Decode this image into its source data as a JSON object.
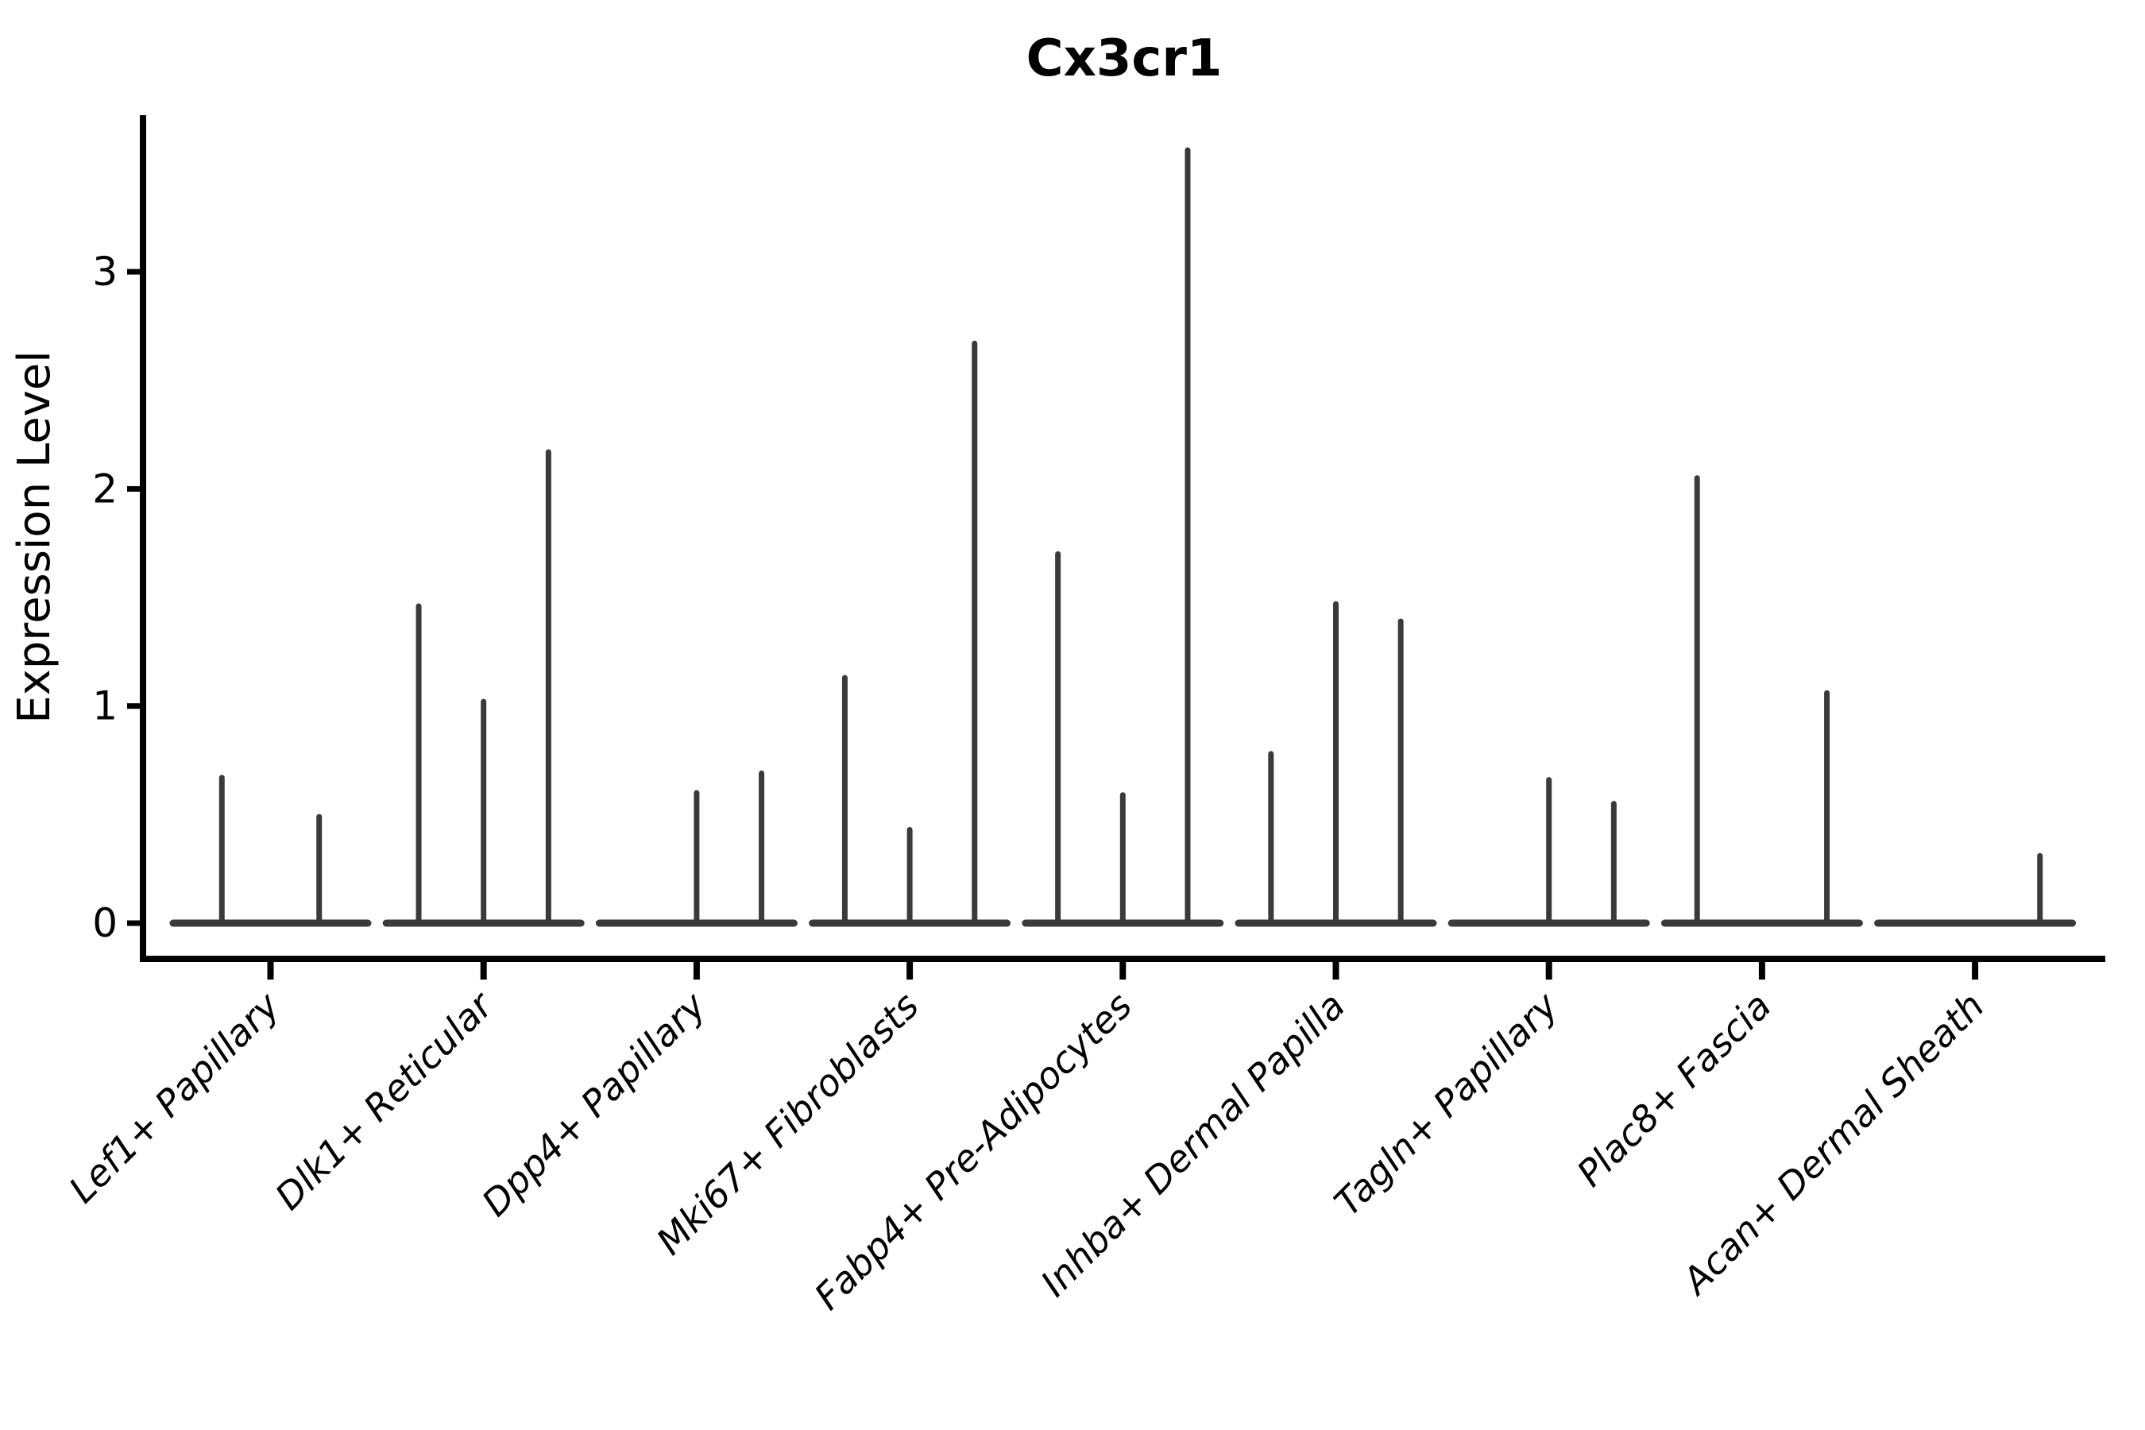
{
  "chart_data": {
    "type": "violin",
    "title": "Cx3cr1",
    "ylabel": "Expression Level",
    "xlabel": "",
    "yticks": [
      0,
      1,
      2,
      3
    ],
    "ylim": [
      -0.17,
      3.72
    ],
    "grid": false,
    "legend_position": "none",
    "categories": [
      "Lef1+ Papillary",
      "Dlk1+ Reticular",
      "Dpp4+ Papillary",
      "Mki67+ Fibroblasts",
      "Fabp4+ Pre-Adipocytes",
      "Inhba+ Dermal Papilla",
      "Tagln+ Papillary",
      "Plac8+ Fascia",
      "Acan+ Dermal Sheath"
    ],
    "violins": [
      {
        "category": "Lef1+ Papillary",
        "spike_heights": [
          0.67,
          0.49
        ]
      },
      {
        "category": "Dlk1+ Reticular",
        "spike_heights": [
          1.46,
          1.02,
          2.17
        ]
      },
      {
        "category": "Dpp4+ Papillary",
        "spike_heights": [
          0,
          0.6,
          0.69
        ]
      },
      {
        "category": "Mki67+ Fibroblasts",
        "spike_heights": [
          1.13,
          0.43,
          2.67
        ]
      },
      {
        "category": "Fabp4+ Pre-Adipocytes",
        "spike_heights": [
          1.7,
          0.59,
          3.56
        ]
      },
      {
        "category": "Inhba+ Dermal Papilla",
        "spike_heights": [
          0.78,
          1.47,
          1.39
        ]
      },
      {
        "category": "Tagln+ Papillary",
        "spike_heights": [
          0,
          0.66,
          0.55
        ]
      },
      {
        "category": "Plac8+ Fascia",
        "spike_heights": [
          2.05,
          0,
          1.06
        ]
      },
      {
        "category": "Acan+ Dermal Sheath",
        "spike_heights": [
          0,
          0,
          0.31
        ]
      }
    ],
    "colors": {
      "violin_line": "#3a3a3a",
      "axis": "#000000",
      "text": "#000000",
      "background": "#ffffff"
    }
  }
}
